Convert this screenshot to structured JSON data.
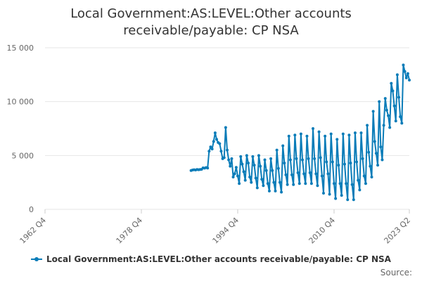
{
  "chart_data": {
    "type": "line",
    "title_line1": "Local Government:AS:LEVEL:Other accounts",
    "title_line2": "receivable/payable: CP NSA",
    "series": [
      {
        "name": "Local Government:AS:LEVEL:Other accounts receivable/payable: CP NSA",
        "color": "#0a7cb8",
        "points": [
          [
            "1987 Q1",
            3600
          ],
          [
            "1987 Q2",
            3650
          ],
          [
            "1987 Q3",
            3680
          ],
          [
            "1987 Q4",
            3650
          ],
          [
            "1988 Q1",
            3700
          ],
          [
            "1988 Q2",
            3680
          ],
          [
            "1988 Q3",
            3700
          ],
          [
            "1988 Q4",
            3720
          ],
          [
            "1989 Q1",
            3850
          ],
          [
            "1989 Q2",
            3820
          ],
          [
            "1989 Q3",
            3880
          ],
          [
            "1989 Q4",
            3830
          ],
          [
            "1990 Q1",
            5400
          ],
          [
            "1990 Q2",
            5800
          ],
          [
            "1990 Q3",
            5600
          ],
          [
            "1990 Q4",
            6300
          ],
          [
            "1991 Q1",
            7100
          ],
          [
            "1991 Q2",
            6500
          ],
          [
            "1991 Q3",
            6200
          ],
          [
            "1991 Q4",
            6100
          ],
          [
            "1992 Q1",
            5400
          ],
          [
            "1992 Q2",
            4700
          ],
          [
            "1992 Q3",
            4800
          ],
          [
            "1992 Q4",
            7600
          ],
          [
            "1993 Q1",
            5500
          ],
          [
            "1993 Q2",
            4600
          ],
          [
            "1993 Q3",
            4000
          ],
          [
            "1993 Q4",
            4700
          ],
          [
            "1994 Q1",
            3000
          ],
          [
            "1994 Q2",
            3300
          ],
          [
            "1994 Q3",
            3900
          ],
          [
            "1994 Q4",
            3100
          ],
          [
            "1995 Q1",
            2400
          ],
          [
            "1995 Q2",
            4900
          ],
          [
            "1995 Q3",
            4200
          ],
          [
            "1995 Q4",
            3500
          ],
          [
            "1996 Q1",
            2700
          ],
          [
            "1996 Q2",
            5000
          ],
          [
            "1996 Q3",
            4300
          ],
          [
            "1996 Q4",
            3000
          ],
          [
            "1997 Q1",
            2500
          ],
          [
            "1997 Q2",
            4900
          ],
          [
            "1997 Q3",
            4100
          ],
          [
            "1997 Q4",
            2900
          ],
          [
            "1998 Q1",
            2000
          ],
          [
            "1998 Q2",
            5000
          ],
          [
            "1998 Q3",
            4000
          ],
          [
            "1998 Q4",
            2800
          ],
          [
            "1999 Q1",
            2200
          ],
          [
            "1999 Q2",
            4600
          ],
          [
            "1999 Q3",
            3600
          ],
          [
            "1999 Q4",
            2400
          ],
          [
            "2000 Q1",
            1700
          ],
          [
            "2000 Q2",
            4700
          ],
          [
            "2000 Q3",
            3600
          ],
          [
            "2000 Q4",
            2500
          ],
          [
            "2001 Q1",
            1700
          ],
          [
            "2001 Q2",
            5500
          ],
          [
            "2001 Q3",
            3800
          ],
          [
            "2001 Q4",
            2500
          ],
          [
            "2002 Q1",
            1600
          ],
          [
            "2002 Q2",
            5900
          ],
          [
            "2002 Q3",
            4300
          ],
          [
            "2002 Q4",
            3200
          ],
          [
            "2003 Q1",
            2300
          ],
          [
            "2003 Q2",
            6800
          ],
          [
            "2003 Q3",
            4600
          ],
          [
            "2003 Q4",
            3200
          ],
          [
            "2004 Q1",
            2300
          ],
          [
            "2004 Q2",
            6900
          ],
          [
            "2004 Q3",
            4700
          ],
          [
            "2004 Q4",
            3400
          ],
          [
            "2005 Q1",
            2400
          ],
          [
            "2005 Q2",
            7000
          ],
          [
            "2005 Q3",
            4600
          ],
          [
            "2005 Q4",
            3300
          ],
          [
            "2006 Q1",
            2400
          ],
          [
            "2006 Q2",
            6800
          ],
          [
            "2006 Q3",
            4700
          ],
          [
            "2006 Q4",
            3400
          ],
          [
            "2007 Q1",
            2400
          ],
          [
            "2007 Q2",
            7500
          ],
          [
            "2007 Q3",
            4700
          ],
          [
            "2007 Q4",
            3300
          ],
          [
            "2008 Q1",
            2200
          ],
          [
            "2008 Q2",
            7200
          ],
          [
            "2008 Q3",
            4800
          ],
          [
            "2008 Q4",
            3100
          ],
          [
            "2009 Q1",
            1500
          ],
          [
            "2009 Q2",
            6800
          ],
          [
            "2009 Q3",
            4400
          ],
          [
            "2009 Q4",
            3300
          ],
          [
            "2010 Q1",
            1400
          ],
          [
            "2010 Q2",
            7000
          ],
          [
            "2010 Q3",
            4400
          ],
          [
            "2010 Q4",
            2400
          ],
          [
            "2011 Q1",
            1000
          ],
          [
            "2011 Q2",
            6500
          ],
          [
            "2011 Q3",
            4100
          ],
          [
            "2011 Q4",
            2400
          ],
          [
            "2012 Q1",
            1300
          ],
          [
            "2012 Q2",
            7000
          ],
          [
            "2012 Q3",
            4200
          ],
          [
            "2012 Q4",
            2400
          ],
          [
            "2013 Q1",
            900
          ],
          [
            "2013 Q2",
            6900
          ],
          [
            "2013 Q3",
            4300
          ],
          [
            "2013 Q4",
            2300
          ],
          [
            "2014 Q1",
            900
          ],
          [
            "2014 Q2",
            7100
          ],
          [
            "2014 Q3",
            4400
          ],
          [
            "2014 Q4",
            2700
          ],
          [
            "2015 Q1",
            1800
          ],
          [
            "2015 Q2",
            7100
          ],
          [
            "2015 Q3",
            4700
          ],
          [
            "2015 Q4",
            3100
          ],
          [
            "2016 Q1",
            2400
          ],
          [
            "2016 Q2",
            7800
          ],
          [
            "2016 Q3",
            5300
          ],
          [
            "2016 Q4",
            4000
          ],
          [
            "2017 Q1",
            3000
          ],
          [
            "2017 Q2",
            9100
          ],
          [
            "2017 Q3",
            6300
          ],
          [
            "2017 Q4",
            5200
          ],
          [
            "2018 Q1",
            4100
          ],
          [
            "2018 Q2",
            10000
          ],
          [
            "2018 Q3",
            5800
          ],
          [
            "2018 Q4",
            4600
          ],
          [
            "2019 Q1",
            7800
          ],
          [
            "2019 Q2",
            10300
          ],
          [
            "2019 Q3",
            9200
          ],
          [
            "2019 Q4",
            8700
          ],
          [
            "2020 Q1",
            7600
          ],
          [
            "2020 Q2",
            11700
          ],
          [
            "2020 Q3",
            11000
          ],
          [
            "2020 Q4",
            9600
          ],
          [
            "2021 Q1",
            8200
          ],
          [
            "2021 Q2",
            12500
          ],
          [
            "2021 Q3",
            10400
          ],
          [
            "2021 Q4",
            8600
          ],
          [
            "2022 Q1",
            8000
          ],
          [
            "2022 Q2",
            13400
          ],
          [
            "2022 Q3",
            12800
          ],
          [
            "2022 Q4",
            12200
          ],
          [
            "2023 Q1",
            12600
          ],
          [
            "2023 Q2",
            12000
          ]
        ]
      }
    ],
    "xlim": [
      "1962 Q4",
      "2023 Q2"
    ],
    "ylim": [
      0,
      15000
    ],
    "yticks": [
      0,
      5000,
      10000,
      15000
    ],
    "ytick_labels": [
      "0",
      "5 000",
      "10 000",
      "15 000"
    ],
    "xticks": [
      "1962 Q4",
      "1978 Q4",
      "1994 Q4",
      "2010 Q4",
      "2023 Q2"
    ],
    "grid": "horizontal",
    "legend_position": "bottom",
    "source_label": "Source:"
  }
}
